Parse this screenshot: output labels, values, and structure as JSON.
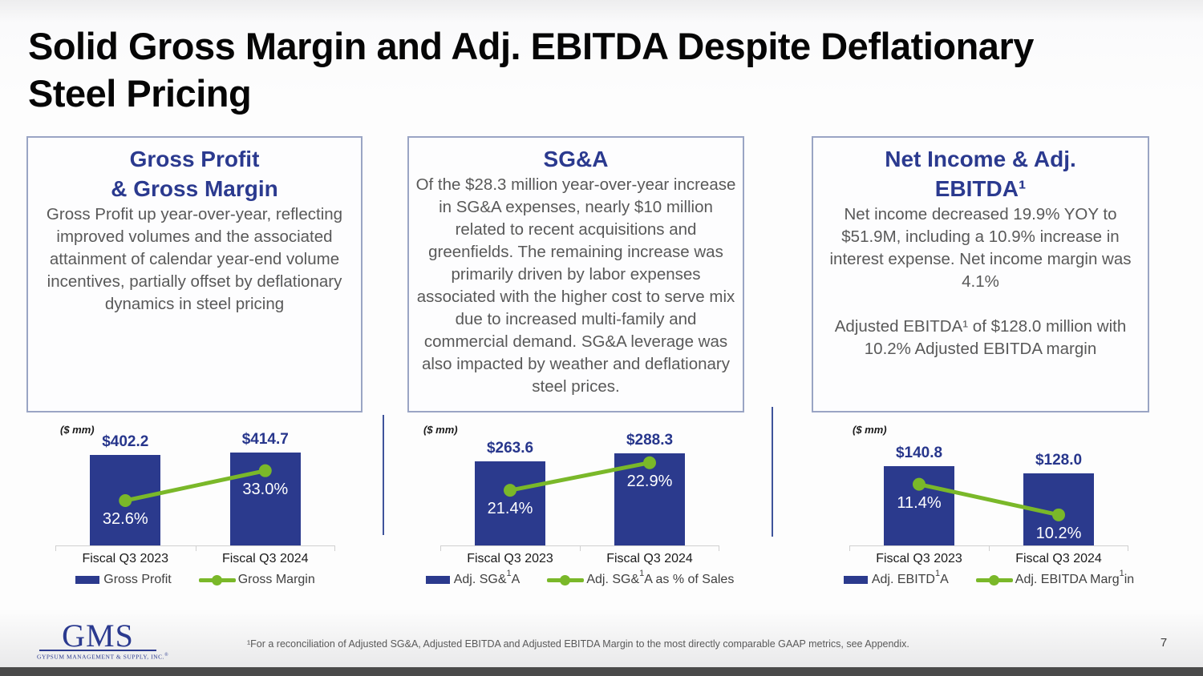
{
  "slide": {
    "title_lines": [
      "Solid Gross Margin and Adj. EBITDA Despite Deflationary",
      "Steel Pricing"
    ],
    "page_number": "7",
    "footnote": "¹For a reconciliation of Adjusted SG&A, Adjusted EBITDA and Adjusted EBITDA Margin to the most directly comparable GAAP metrics, see Appendix.",
    "logo": {
      "word": "GMS",
      "subtitle": "GYPSUM MANAGEMENT & SUPPLY, INC.",
      "registered_mark": "®"
    }
  },
  "colors": {
    "bar_blue": "#2b3a8d",
    "line_green": "#7ab829",
    "heading_blue": "#2b3a8f",
    "body_gray": "#595959",
    "box_border": "#9aa5c4",
    "axis_gray": "#d0d0d0"
  },
  "callout_boxes": [
    {
      "title_lines": [
        "Gross Profit",
        "& Gross Margin"
      ],
      "body_paragraphs": [
        "Gross Profit up year-over-year, reflecting improved volumes and the associated attainment of calendar year-end volume incentives, partially offset by deflationary dynamics in steel pricing"
      ]
    },
    {
      "title_lines": [
        "SG&A"
      ],
      "body_paragraphs": [
        "Of the $28.3 million year-over-year increase in SG&A expenses, nearly $10 million related to recent acquisitions and greenfields. The remaining increase was primarily driven by labor expenses associated with the higher cost to serve mix due to increased multi-family and commercial demand.  SG&A leverage was also impacted by weather and deflationary steel prices."
      ]
    },
    {
      "title_lines": [
        "Net Income & Adj.",
        "EBITDA¹"
      ],
      "body_paragraphs": [
        "Net income decreased 19.9% YOY to $51.9M, including a 10.9% increase in interest expense.  Net income margin was 4.1%",
        "Adjusted EBITDA¹ of $128.0 million with 10.2% Adjusted EBITDA margin"
      ]
    }
  ],
  "chart_data": [
    {
      "type": "bar",
      "units_label": "($ mm)",
      "categories": [
        "Fiscal Q3 2023",
        "Fiscal Q3 2024"
      ],
      "bar": {
        "name": "Gross Profit",
        "values": [
          402.2,
          414.7
        ],
        "data_labels": [
          "$402.2",
          "$414.7"
        ],
        "axis_range": [
          0,
          500
        ],
        "legend_segments": [
          {
            "t": "Gross Profit"
          }
        ]
      },
      "line": {
        "name": "Gross Margin",
        "values": [
          32.6,
          33.0
        ],
        "data_labels": [
          "32.6%",
          "33.0%"
        ],
        "axis_range": [
          32.0,
          33.5
        ],
        "legend_segments": [
          {
            "t": "Gross Margin"
          }
        ]
      },
      "legend_position": "bottom",
      "grid": false
    },
    {
      "type": "bar",
      "units_label": "($ mm)",
      "categories": [
        "Fiscal Q3 2023",
        "Fiscal Q3 2024"
      ],
      "bar": {
        "name": "Adj. SG&A",
        "values": [
          263.6,
          288.3
        ],
        "data_labels": [
          "$263.6",
          "$288.3"
        ],
        "axis_range": [
          0,
          350
        ],
        "legend_segments": [
          {
            "t": "Adj. SG&"
          },
          {
            "t": "1",
            "sup": true
          },
          {
            "t": "A"
          }
        ]
      },
      "line": {
        "name": "Adj. SG&A as % of Sales",
        "values": [
          21.4,
          22.9
        ],
        "data_labels": [
          "21.4%",
          "22.9%"
        ],
        "axis_range": [
          18.4,
          24.5
        ],
        "legend_segments": [
          {
            "t": "Adj. SG&"
          },
          {
            "t": "1",
            "sup": true
          },
          {
            "t": "A as % of Sales"
          }
        ]
      },
      "legend_position": "bottom",
      "grid": false
    },
    {
      "type": "bar",
      "units_label": "($ mm)",
      "categories": [
        "Fiscal Q3 2023",
        "Fiscal Q3 2024"
      ],
      "bar": {
        "name": "Adj. EBITDA",
        "values": [
          140.8,
          128.0
        ],
        "data_labels": [
          "$140.8",
          "$128.0"
        ],
        "axis_range": [
          0,
          200
        ],
        "legend_segments": [
          {
            "t": "Adj. EBITD"
          },
          {
            "t": "1",
            "sup": true
          },
          {
            "t": "A"
          }
        ]
      },
      "line": {
        "name": "Adj. EBITDA Margin",
        "values": [
          11.4,
          10.2
        ],
        "data_labels": [
          "11.4%",
          "10.2%"
        ],
        "axis_range": [
          9.0,
          13.4
        ],
        "legend_segments": [
          {
            "t": "Adj. EBITDA Marg"
          },
          {
            "t": "1",
            "sup": true
          },
          {
            "t": "in"
          }
        ]
      },
      "legend_position": "bottom",
      "grid": false
    }
  ]
}
